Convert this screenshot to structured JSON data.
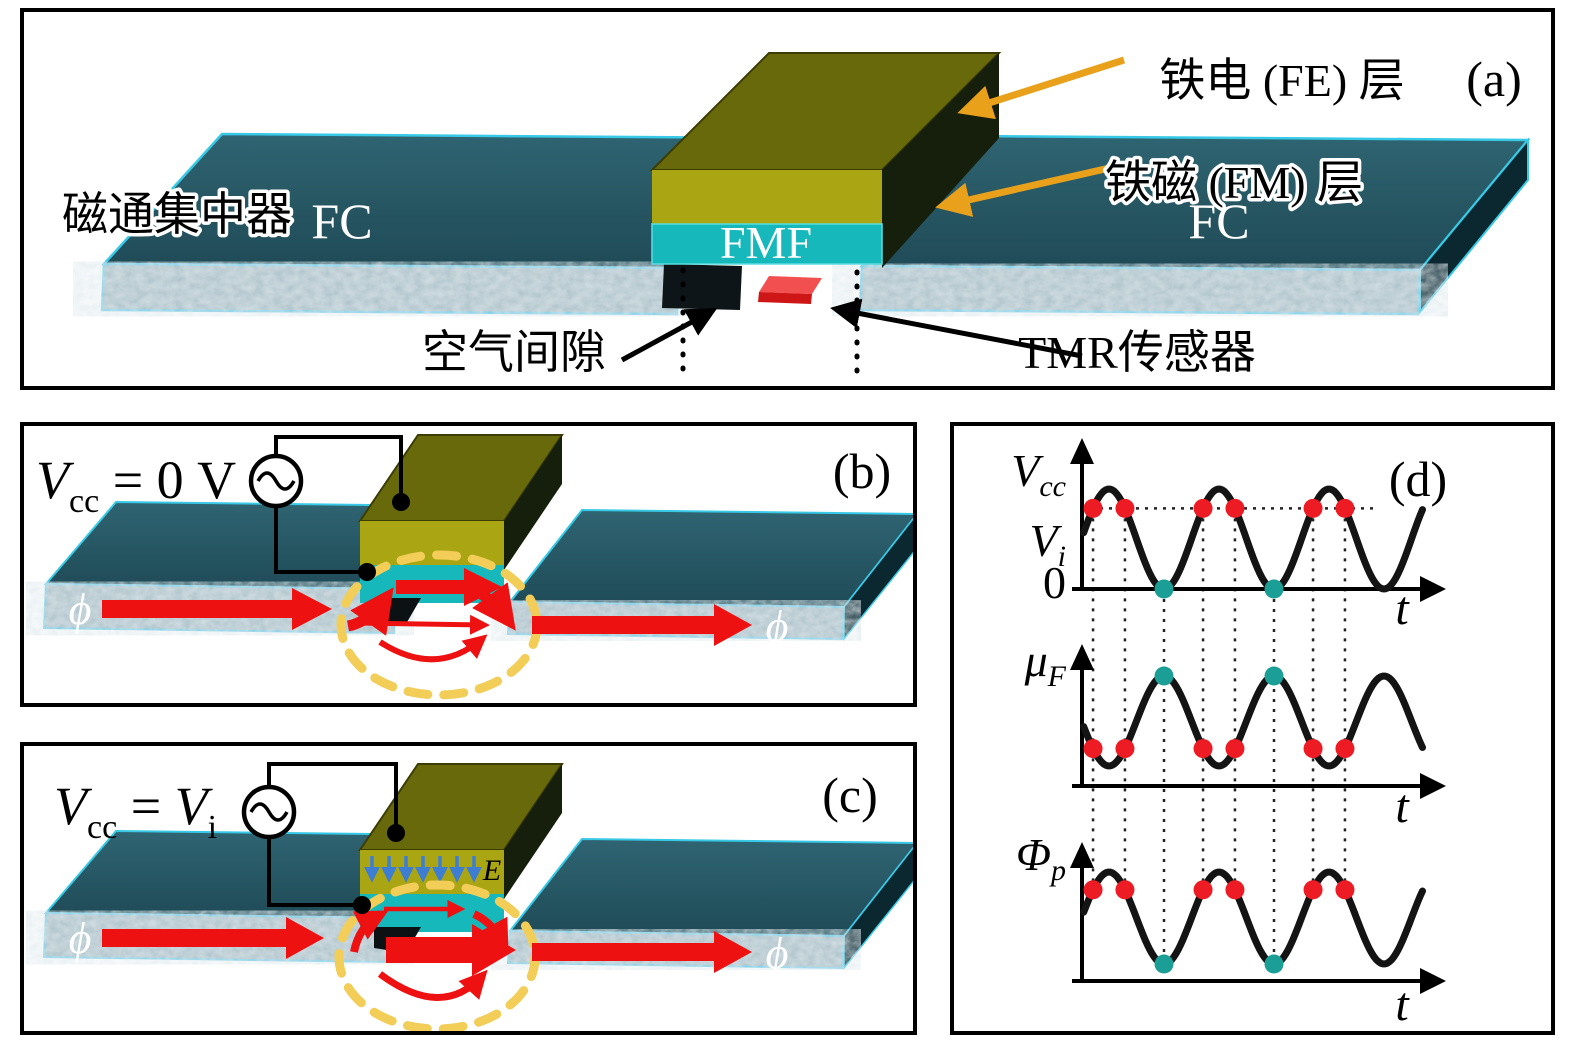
{
  "colors": {
    "slab_top": "#2b5a66",
    "slab_front": "#9db6bf",
    "slab_side": "#0b2730",
    "slab_edge_cyan": "#38c9e6",
    "fe_top": "#67690a",
    "fe_front": "#a9a513",
    "fe_side": "#161f0b",
    "fmf_cyan": "#17b8bc",
    "tmr_sensor_red": "#e82e2e",
    "label_arrow_orange": "#e9a11c",
    "flux_arrow_red": "#ee1111",
    "ellipse_yellow": "#f2cd58",
    "efield_blue": "#3d7ed2",
    "curve_black": "#141414",
    "marker_red": "#ed1c24",
    "marker_teal": "#1a9e96"
  },
  "figure": {
    "panel_a": {
      "tag": "(a)",
      "flux_concentrator_label": "磁通集中器",
      "fc_left": "FC",
      "fc_right": "FC",
      "fmf_label": "FMF",
      "fe_layer_label": "铁电 (FE) 层",
      "fm_layer_label": "铁磁 (FM) 层",
      "air_gap_label": "空气间隙",
      "tmr_sensor_label": "TMR传感器"
    },
    "panel_b": {
      "tag": "(b)",
      "voltage": {
        "v1": "V",
        "v1_sub": "cc",
        "rest": " = 0 V"
      },
      "phi_left": "ϕ",
      "phi_right": "ϕ"
    },
    "panel_c": {
      "tag": "(c)",
      "voltage": {
        "v1": "V",
        "v1_sub": "cc",
        "eq": " = ",
        "v2": "V",
        "v2_sub": "i"
      },
      "phi_left": "ϕ",
      "phi_right": "ϕ",
      "e_field_label": "E"
    },
    "panel_d": {
      "tag": "(d)"
    }
  },
  "chart_data": {
    "type": "line",
    "panel": "(d)",
    "x_label": "t",
    "x_unit": "time (schematic, periods)",
    "x_range_periods": [
      0.27,
      3.36
    ],
    "grid": false,
    "marker_colors": {
      "red": "#ed1c24",
      "teal": "#1a9e96"
    },
    "plots": [
      {
        "name": "supply_voltage",
        "y_axis_labels": [
          [
            {
              "t": "V"
            },
            {
              "t": "cc",
              "sub": true
            }
          ],
          [
            {
              "t": "V"
            },
            {
              "t": "i",
              "sub": true
            }
          ],
          [
            {
              "t": "0",
              "up": true
            }
          ]
        ],
        "x_label": "t",
        "orientation": 1,
        "waveform": "raised cosine, minima touch 0",
        "peaks_t": [
          0.5,
          1.5,
          2.5
        ],
        "minima_t": [
          1.0,
          2.0
        ],
        "red_markers_t": [
          0.355,
          0.645,
          1.355,
          1.645,
          2.355,
          2.645
        ],
        "teal_markers_t": [
          1.0,
          2.0
        ],
        "ref_level": "Vi",
        "ref_line_dotted": true
      },
      {
        "name": "mu_F",
        "y_axis_labels": [
          [
            {
              "t": "μ"
            },
            {
              "t": "F",
              "sub": true
            }
          ]
        ],
        "x_label": "t",
        "orientation": -1,
        "waveform": "inverted cosine (antiphase with Vcc)",
        "peaks_t": [
          1.0,
          2.0
        ],
        "minima_t": [
          0.5,
          1.5,
          2.5
        ],
        "red_markers_t": [
          0.355,
          0.645,
          1.355,
          1.645,
          2.355,
          2.645
        ],
        "teal_markers_t": [
          1.0,
          2.0
        ],
        "ref_line_dotted": false
      },
      {
        "name": "Phi_p",
        "y_axis_labels": [
          [
            {
              "t": "Φ"
            },
            {
              "t": "p",
              "sub": true
            }
          ]
        ],
        "x_label": "t",
        "orientation": 1,
        "waveform": "cosine in phase with Vcc",
        "peaks_t": [
          0.5,
          1.5,
          2.5
        ],
        "minima_t": [
          1.0,
          2.0
        ],
        "red_markers_t": [
          0.355,
          0.645,
          1.355,
          1.645,
          2.355,
          2.645
        ],
        "teal_markers_t": [
          1.0,
          2.0
        ],
        "ref_line_dotted": false
      }
    ]
  }
}
